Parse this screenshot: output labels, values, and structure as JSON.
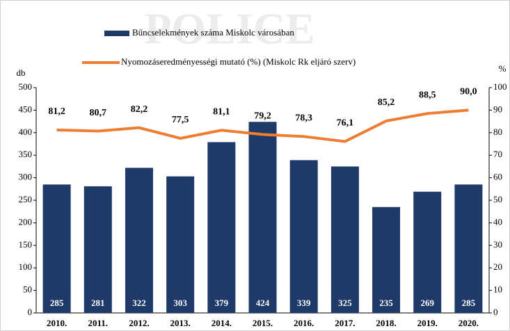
{
  "chart_data": {
    "type": "bar-line",
    "y_label": "db",
    "y2_label": "%",
    "categories": [
      "2010.",
      "2011.",
      "2012.",
      "2013.",
      "2014.",
      "2015.",
      "2016.",
      "2017.",
      "2018.",
      "2019.",
      "2020."
    ],
    "series": [
      {
        "name": "Bűncselekmények száma Miskolc városában",
        "type": "bar",
        "color": "#1f3a68",
        "values": [
          285,
          281,
          322,
          303,
          379,
          424,
          339,
          325,
          235,
          269,
          285
        ]
      },
      {
        "name": "Nyomozáseredményességi mutató (%) (Miskolc Rk eljáró szerv)",
        "type": "line",
        "color": "#ed7d31",
        "axis": "y2",
        "values": [
          81.2,
          80.7,
          82.2,
          77.5,
          81.1,
          79.2,
          78.3,
          76.1,
          85.2,
          88.5,
          90.0
        ],
        "value_labels": [
          "81,2",
          "80,7",
          "82,2",
          "77,5",
          "81,1",
          "79,2",
          "78,3",
          "76,1",
          "85,2",
          "88,5",
          "90,0"
        ]
      }
    ],
    "ylim": [
      0,
      500
    ],
    "yticks": [
      0,
      50,
      100,
      150,
      200,
      250,
      300,
      350,
      400,
      450,
      500
    ],
    "y2lim": [
      0,
      100
    ],
    "y2ticks": [
      0,
      10,
      20,
      30,
      40,
      50,
      60,
      70,
      80,
      90,
      100
    ]
  }
}
